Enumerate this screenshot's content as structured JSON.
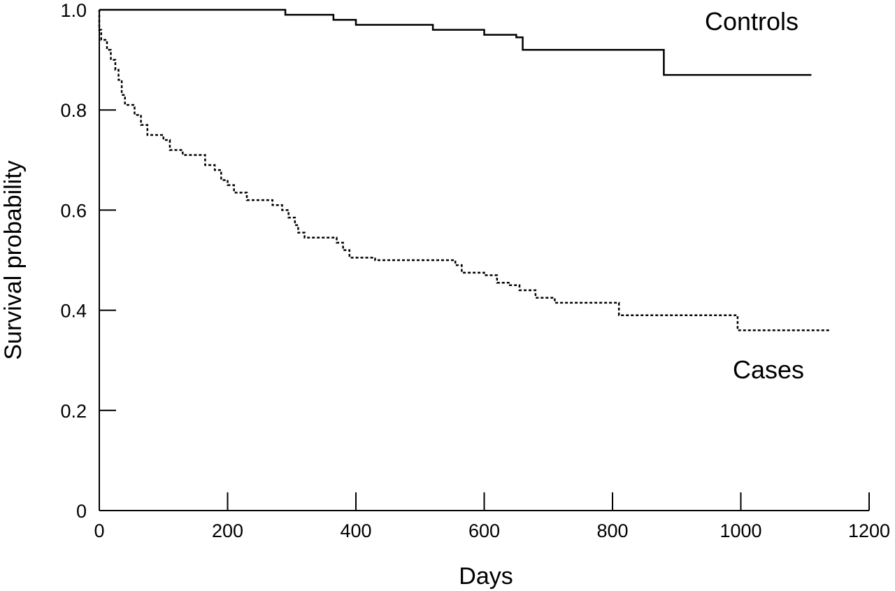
{
  "chart_data": {
    "type": "line",
    "xlabel": "Days",
    "ylabel": "Survival probability",
    "xlim": [
      0,
      1200
    ],
    "ylim": [
      0,
      1
    ],
    "x_ticks": [
      0,
      200,
      400,
      600,
      800,
      1000,
      1200
    ],
    "x_tick_labels": [
      "0",
      "200",
      "400",
      "600",
      "800",
      "1000",
      "1200"
    ],
    "y_ticks": [
      0,
      0.2,
      0.4,
      0.6,
      0.8,
      1.0
    ],
    "y_tick_labels": [
      "0",
      "0.2",
      "0.4",
      "0.6",
      "0.8",
      "1.0"
    ],
    "grid": false,
    "series": [
      {
        "name": "Controls",
        "line_style": "solid",
        "step": true,
        "points": [
          [
            0,
            1.0
          ],
          [
            290,
            1.0
          ],
          [
            290,
            0.99
          ],
          [
            365,
            0.99
          ],
          [
            365,
            0.98
          ],
          [
            400,
            0.98
          ],
          [
            400,
            0.97
          ],
          [
            520,
            0.97
          ],
          [
            520,
            0.96
          ],
          [
            600,
            0.96
          ],
          [
            600,
            0.95
          ],
          [
            650,
            0.95
          ],
          [
            650,
            0.945
          ],
          [
            660,
            0.945
          ],
          [
            660,
            0.92
          ],
          [
            880,
            0.92
          ],
          [
            880,
            0.87
          ],
          [
            1110,
            0.87
          ]
        ]
      },
      {
        "name": "Cases",
        "line_style": "dotted",
        "step": true,
        "points": [
          [
            0,
            1.0
          ],
          [
            0,
            0.96
          ],
          [
            3,
            0.96
          ],
          [
            3,
            0.94
          ],
          [
            12,
            0.94
          ],
          [
            12,
            0.92
          ],
          [
            18,
            0.92
          ],
          [
            18,
            0.9
          ],
          [
            25,
            0.9
          ],
          [
            25,
            0.88
          ],
          [
            30,
            0.88
          ],
          [
            30,
            0.86
          ],
          [
            35,
            0.86
          ],
          [
            35,
            0.83
          ],
          [
            40,
            0.83
          ],
          [
            40,
            0.81
          ],
          [
            55,
            0.81
          ],
          [
            55,
            0.79
          ],
          [
            65,
            0.79
          ],
          [
            65,
            0.77
          ],
          [
            75,
            0.77
          ],
          [
            75,
            0.75
          ],
          [
            100,
            0.75
          ],
          [
            100,
            0.74
          ],
          [
            110,
            0.74
          ],
          [
            110,
            0.72
          ],
          [
            130,
            0.72
          ],
          [
            130,
            0.71
          ],
          [
            165,
            0.71
          ],
          [
            165,
            0.69
          ],
          [
            180,
            0.69
          ],
          [
            180,
            0.68
          ],
          [
            190,
            0.68
          ],
          [
            190,
            0.66
          ],
          [
            200,
            0.66
          ],
          [
            200,
            0.65
          ],
          [
            210,
            0.65
          ],
          [
            210,
            0.635
          ],
          [
            230,
            0.635
          ],
          [
            230,
            0.62
          ],
          [
            270,
            0.62
          ],
          [
            270,
            0.61
          ],
          [
            285,
            0.61
          ],
          [
            285,
            0.6
          ],
          [
            295,
            0.6
          ],
          [
            295,
            0.585
          ],
          [
            305,
            0.585
          ],
          [
            305,
            0.57
          ],
          [
            310,
            0.57
          ],
          [
            310,
            0.555
          ],
          [
            320,
            0.555
          ],
          [
            320,
            0.545
          ],
          [
            370,
            0.545
          ],
          [
            370,
            0.535
          ],
          [
            380,
            0.535
          ],
          [
            380,
            0.52
          ],
          [
            390,
            0.52
          ],
          [
            390,
            0.505
          ],
          [
            430,
            0.505
          ],
          [
            430,
            0.5
          ],
          [
            555,
            0.5
          ],
          [
            555,
            0.49
          ],
          [
            565,
            0.49
          ],
          [
            565,
            0.475
          ],
          [
            600,
            0.475
          ],
          [
            600,
            0.47
          ],
          [
            620,
            0.47
          ],
          [
            620,
            0.455
          ],
          [
            640,
            0.455
          ],
          [
            640,
            0.45
          ],
          [
            655,
            0.45
          ],
          [
            655,
            0.44
          ],
          [
            680,
            0.44
          ],
          [
            680,
            0.425
          ],
          [
            710,
            0.425
          ],
          [
            710,
            0.415
          ],
          [
            810,
            0.415
          ],
          [
            810,
            0.39
          ],
          [
            995,
            0.39
          ],
          [
            995,
            0.36
          ],
          [
            1140,
            0.36
          ]
        ]
      }
    ]
  }
}
